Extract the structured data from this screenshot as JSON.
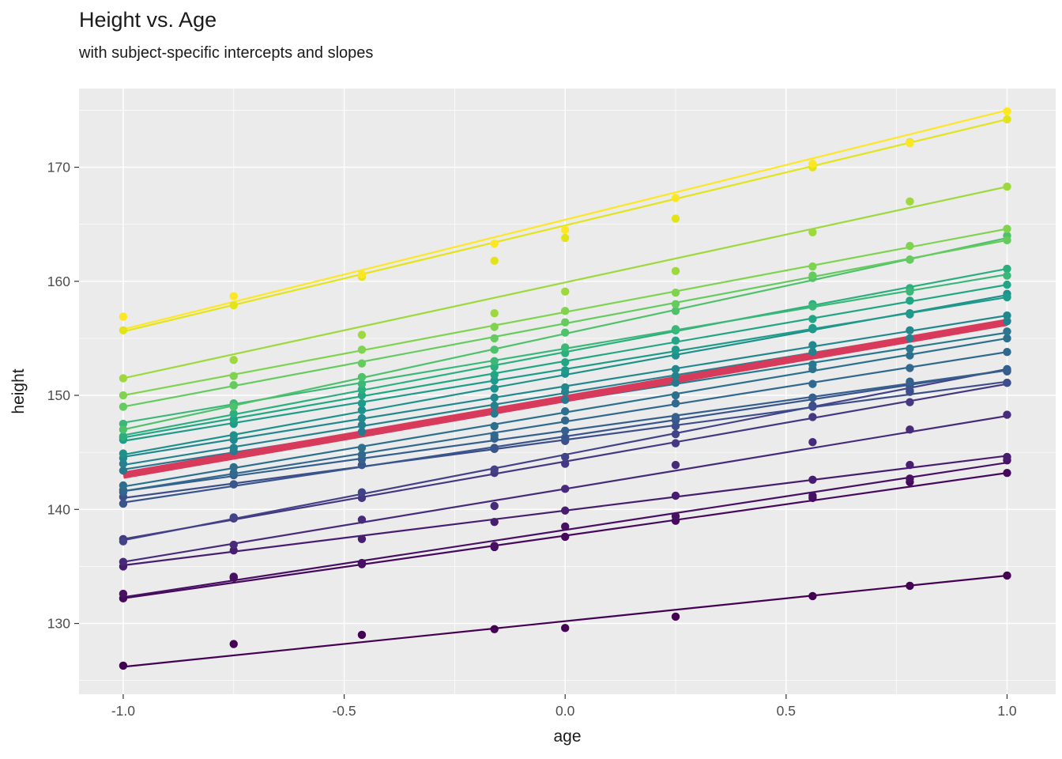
{
  "page": {
    "title": "Height vs. Age",
    "subtitle": "with subject-specific intercepts and slopes"
  },
  "chart_data": {
    "type": "line",
    "title": "Height vs. Age",
    "subtitle": "with subject-specific intercepts and slopes",
    "xlabel": "age",
    "ylabel": "height",
    "xlim": [
      -1.1,
      1.11
    ],
    "ylim": [
      123.8,
      176.9
    ],
    "x_ticks": [
      -1.0,
      -0.5,
      0.0,
      0.5,
      1.0
    ],
    "x_tick_labels": [
      "-1.0",
      "-0.5",
      "0.0",
      "0.5",
      "1.0"
    ],
    "y_ticks": [
      130,
      140,
      150,
      160,
      170
    ],
    "y_tick_labels": [
      "130",
      "140",
      "150",
      "160",
      "170"
    ],
    "x_minor": [
      -0.75,
      -0.25,
      0.25,
      0.75
    ],
    "y_minor": [
      125,
      135,
      145,
      155,
      165,
      175
    ],
    "grid": true,
    "legend": "none",
    "theme": {
      "panel_bg": "#EBEBEB",
      "grid_major": "#FFFFFF",
      "grid_minor": "#FFFFFF",
      "tick_label_color": "#4D4D4D",
      "axis_title_color": "#1A1A1A",
      "title_color": "#1A1A1A",
      "tick_color": "#333333"
    },
    "x": [
      -1.0,
      -0.75,
      -0.46,
      -0.16,
      0.0,
      0.25,
      0.56,
      0.78,
      1.0
    ],
    "population_line": {
      "name": "population-average",
      "intercept": 149.7,
      "slope": 6.7,
      "color": "#D83A5B",
      "stroke_width": 9
    },
    "subject_line_width": 2.2,
    "point_radius": 5.2,
    "subjects": [
      {
        "id": "s01",
        "color": "#440154",
        "intercept": 130.2,
        "slope": 4.0,
        "y": [
          126.3,
          128.2,
          129.0,
          129.5,
          129.6,
          130.6,
          132.4,
          133.3,
          134.2
        ]
      },
      {
        "id": "s02",
        "color": "#46085C",
        "intercept": 137.7,
        "slope": 5.5,
        "y": [
          132.2,
          134.0,
          135.2,
          136.7,
          137.6,
          139.0,
          141.0,
          142.4,
          143.2
        ]
      },
      {
        "id": "s03",
        "color": "#471063",
        "intercept": 138.2,
        "slope": 5.9,
        "y": [
          132.6,
          134.1,
          135.3,
          136.8,
          138.5,
          139.4,
          141.2,
          142.7,
          144.3
        ]
      },
      {
        "id": "s04",
        "color": "#481D6F",
        "intercept": 139.9,
        "slope": 4.8,
        "y": [
          135.0,
          136.4,
          137.4,
          138.9,
          139.9,
          141.2,
          142.6,
          143.9,
          144.6
        ]
      },
      {
        "id": "s05",
        "color": "#472A7A",
        "intercept": 141.8,
        "slope": 6.4,
        "y": [
          135.4,
          136.9,
          139.1,
          140.3,
          141.8,
          143.9,
          145.9,
          147.0,
          148.3
        ]
      },
      {
        "id": "s06",
        "color": "#453781",
        "intercept": 144.2,
        "slope": 6.8,
        "y": [
          137.4,
          139.2,
          141.0,
          143.2,
          144.0,
          145.8,
          148.1,
          149.4,
          151.1
        ]
      },
      {
        "id": "s07",
        "color": "#414287",
        "intercept": 144.8,
        "slope": 7.5,
        "y": [
          137.2,
          139.3,
          141.5,
          143.5,
          144.6,
          146.6,
          149.1,
          150.4,
          152.2
        ]
      },
      {
        "id": "s08",
        "color": "#3D4E8A",
        "intercept": 146.1,
        "slope": 5.1,
        "y": [
          141.1,
          142.2,
          143.9,
          145.3,
          146.0,
          147.3,
          149.0,
          150.3,
          151.1
        ]
      },
      {
        "id": "s09",
        "color": "#39568C",
        "intercept": 146.4,
        "slope": 5.8,
        "y": [
          140.5,
          142.2,
          143.9,
          145.4,
          146.3,
          147.8,
          149.8,
          150.8,
          152.1
        ]
      },
      {
        "id": "s10",
        "color": "#355F8D",
        "intercept": 146.9,
        "slope": 5.3,
        "y": [
          141.5,
          143.0,
          144.4,
          146.2,
          146.9,
          148.1,
          149.8,
          151.2,
          152.3
        ]
      },
      {
        "id": "s11",
        "color": "#31688E",
        "intercept": 147.7,
        "slope": 6.1,
        "y": [
          141.7,
          143.2,
          144.8,
          146.5,
          147.8,
          149.3,
          151.0,
          152.4,
          153.8
        ]
      },
      {
        "id": "s12",
        "color": "#2D708E",
        "intercept": 148.5,
        "slope": 6.5,
        "y": [
          142.1,
          143.7,
          145.4,
          147.3,
          148.6,
          150.0,
          152.3,
          153.5,
          155.0
        ]
      },
      {
        "id": "s13",
        "color": "#2A788E",
        "intercept": 149.5,
        "slope": 6.0,
        "y": [
          143.4,
          145.1,
          146.8,
          148.4,
          149.6,
          151.1,
          152.7,
          154.1,
          155.6
        ]
      },
      {
        "id": "s14",
        "color": "#26818E",
        "intercept": 150.2,
        "slope": 6.3,
        "y": [
          144.0,
          145.4,
          147.4,
          149.1,
          150.3,
          151.7,
          153.8,
          155.0,
          156.5
        ]
      },
      {
        "id": "s15",
        "color": "#23888E",
        "intercept": 150.8,
        "slope": 6.2,
        "y": [
          144.5,
          146.1,
          148.0,
          149.8,
          150.7,
          152.3,
          154.4,
          155.7,
          157.0
        ]
      },
      {
        "id": "s16",
        "color": "#1F918C",
        "intercept": 151.8,
        "slope": 7.0,
        "y": [
          144.9,
          146.5,
          148.7,
          150.6,
          151.9,
          153.5,
          155.8,
          157.2,
          158.9
        ]
      },
      {
        "id": "s17",
        "color": "#1E9B8A",
        "intercept": 152.3,
        "slope": 6.3,
        "y": [
          146.1,
          147.5,
          149.3,
          151.3,
          152.2,
          154.0,
          155.9,
          157.1,
          158.6
        ]
      },
      {
        "id": "s18",
        "color": "#21A585",
        "intercept": 153.0,
        "slope": 6.7,
        "y": [
          146.3,
          147.9,
          150.0,
          151.8,
          152.9,
          154.8,
          156.7,
          158.3,
          159.7
        ]
      },
      {
        "id": "s19",
        "color": "#2BAF7F",
        "intercept": 153.8,
        "slope": 7.3,
        "y": [
          146.4,
          148.4,
          150.5,
          152.5,
          153.7,
          155.7,
          158.0,
          159.4,
          161.1
        ]
      },
      {
        "id": "s20",
        "color": "#3BB877",
        "intercept": 154.1,
        "slope": 6.5,
        "y": [
          147.5,
          149.3,
          151.0,
          153.0,
          154.2,
          155.8,
          157.8,
          159.1,
          160.5
        ]
      },
      {
        "id": "s21",
        "color": "#4EC16B",
        "intercept": 155.4,
        "slope": 8.4,
        "y": [
          147.0,
          149.0,
          151.6,
          154.0,
          155.5,
          157.4,
          160.3,
          161.9,
          164.0
        ]
      },
      {
        "id": "s22",
        "color": "#65CB5E",
        "intercept": 156.3,
        "slope": 7.3,
        "y": [
          149.0,
          150.9,
          152.8,
          155.0,
          156.4,
          158.0,
          160.5,
          161.9,
          163.6
        ]
      },
      {
        "id": "s23",
        "color": "#7FD34E",
        "intercept": 157.3,
        "slope": 7.3,
        "y": [
          150.0,
          151.7,
          154.0,
          156.0,
          157.4,
          159.0,
          161.3,
          163.1,
          164.6
        ]
      },
      {
        "id": "s24",
        "color": "#9DD93C",
        "intercept": 159.9,
        "slope": 8.4,
        "y": [
          151.5,
          153.1,
          155.3,
          157.2,
          159.1,
          160.9,
          164.3,
          167.0,
          168.3
        ]
      },
      {
        "id": "s25",
        "color": "#E3E418",
        "intercept": 164.9,
        "slope": 9.3,
        "y": [
          155.7,
          157.9,
          160.4,
          161.8,
          163.8,
          165.5,
          170.0,
          172.2,
          174.2
        ]
      },
      {
        "id": "s26",
        "color": "#FDE725",
        "intercept": 165.4,
        "slope": 9.6,
        "y": [
          156.9,
          158.7,
          160.6,
          163.3,
          164.5,
          167.3,
          170.3,
          172.1,
          174.9
        ]
      }
    ]
  }
}
